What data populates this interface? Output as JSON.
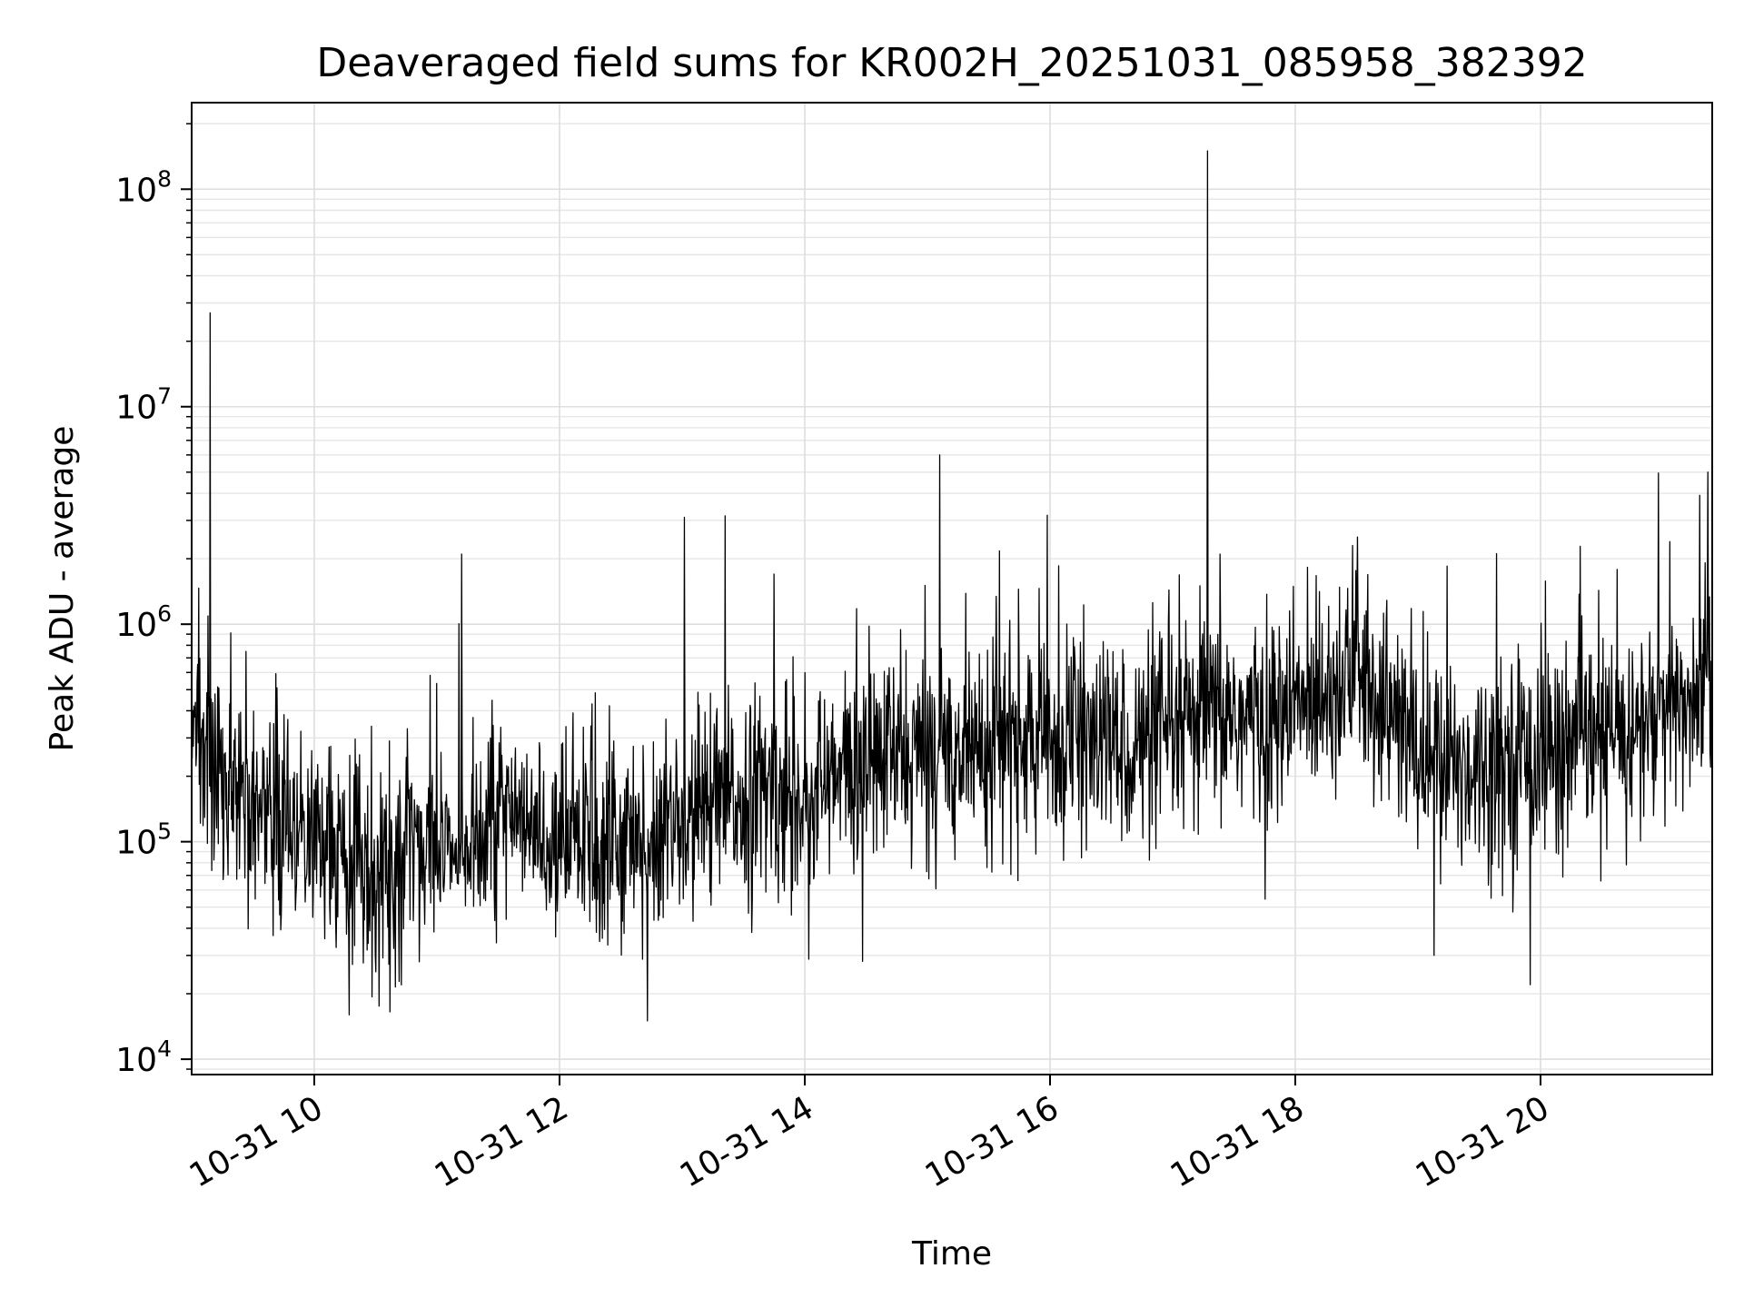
{
  "chart_data": {
    "type": "line",
    "title": "Deaveraged field sums for KR002H_20251031_085958_382392",
    "xlabel": "Time",
    "ylabel": "Peak ADU - average",
    "y_scale": "log",
    "ylim": [
      8500,
      250000000
    ],
    "xlim": [
      "2025-10-31 09:00",
      "2025-10-31 21:24"
    ],
    "grid": "major and minor",
    "line_color": "#000000",
    "x_tick_labels": [
      "10-31 10",
      "10-31 12",
      "10-31 14",
      "10-31 16",
      "10-31 18",
      "10-31 20"
    ],
    "x_tick_times": [
      "2025-10-31 10:00",
      "2025-10-31 12:00",
      "2025-10-31 14:00",
      "2025-10-31 16:00",
      "2025-10-31 18:00",
      "2025-10-31 20:00"
    ],
    "y_tick_labels": [
      {
        "base": "10",
        "exp": "4",
        "value": 10000
      },
      {
        "base": "10",
        "exp": "5",
        "value": 100000
      },
      {
        "base": "10",
        "exp": "6",
        "value": 1000000
      },
      {
        "base": "10",
        "exp": "7",
        "value": 10000000
      },
      {
        "base": "10",
        "exp": "8",
        "value": 100000000
      }
    ],
    "series": [
      {
        "x": [
          "2025-10-31 09:00",
          "2025-10-31 09:15",
          "2025-10-31 09:30",
          "2025-10-31 09:45",
          "2025-10-31 10:00",
          "2025-10-31 10:15",
          "2025-10-31 10:30",
          "2025-10-31 10:45",
          "2025-10-31 11:00",
          "2025-10-31 11:15",
          "2025-10-31 11:30",
          "2025-10-31 11:45",
          "2025-10-31 12:00",
          "2025-10-31 12:15",
          "2025-10-31 12:30",
          "2025-10-31 12:45",
          "2025-10-31 13:00",
          "2025-10-31 13:15",
          "2025-10-31 13:30",
          "2025-10-31 13:45",
          "2025-10-31 14:00",
          "2025-10-31 14:15",
          "2025-10-31 14:30",
          "2025-10-31 14:45",
          "2025-10-31 15:00",
          "2025-10-31 15:15",
          "2025-10-31 15:30",
          "2025-10-31 15:45",
          "2025-10-31 16:00",
          "2025-10-31 16:15",
          "2025-10-31 16:30",
          "2025-10-31 16:45",
          "2025-10-31 17:00",
          "2025-10-31 17:15",
          "2025-10-31 17:30",
          "2025-10-31 17:45",
          "2025-10-31 18:00",
          "2025-10-31 18:15",
          "2025-10-31 18:30",
          "2025-10-31 18:45",
          "2025-10-31 19:00",
          "2025-10-31 19:15",
          "2025-10-31 19:30",
          "2025-10-31 19:45",
          "2025-10-31 20:00",
          "2025-10-31 20:15",
          "2025-10-31 20:30",
          "2025-10-31 20:45",
          "2025-10-31 21:00",
          "2025-10-31 21:15",
          "2025-10-31 21:24"
        ],
        "y": [
          280000,
          220000,
          150000,
          120000,
          110000,
          90000,
          80000,
          90000,
          100000,
          110000,
          120000,
          110000,
          100000,
          105000,
          110000,
          100000,
          120000,
          140000,
          160000,
          170000,
          160000,
          190000,
          230000,
          250000,
          250000,
          270000,
          300000,
          290000,
          280000,
          290000,
          280000,
          270000,
          300000,
          360000,
          380000,
          340000,
          400000,
          560000,
          600000,
          400000,
          260000,
          220000,
          230000,
          250000,
          260000,
          270000,
          290000,
          320000,
          370000,
          450000,
          700000
        ]
      }
    ],
    "annotations_peaks": [
      {
        "x": "2025-10-31 09:09",
        "y": 27000000
      },
      {
        "x": "2025-10-31 11:12",
        "y": 2100000
      },
      {
        "x": "2025-10-31 13:01",
        "y": 3100000
      },
      {
        "x": "2025-10-31 13:21",
        "y": 3150000
      },
      {
        "x": "2025-10-31 13:45",
        "y": 1700000
      },
      {
        "x": "2025-10-31 15:06",
        "y": 6000000
      },
      {
        "x": "2025-10-31 17:17",
        "y": 150000000
      },
      {
        "x": "2025-10-31 18:28",
        "y": 2300000
      },
      {
        "x": "2025-10-31 21:22",
        "y": 5000000
      }
    ],
    "annotations_dips": [
      {
        "x": "2025-10-31 10:17",
        "y": 16000
      },
      {
        "x": "2025-10-31 10:37",
        "y": 16500
      },
      {
        "x": "2025-10-31 12:43",
        "y": 15000
      },
      {
        "x": "2025-10-31 19:08",
        "y": 30000
      },
      {
        "x": "2025-10-31 19:55",
        "y": 22000
      }
    ]
  }
}
